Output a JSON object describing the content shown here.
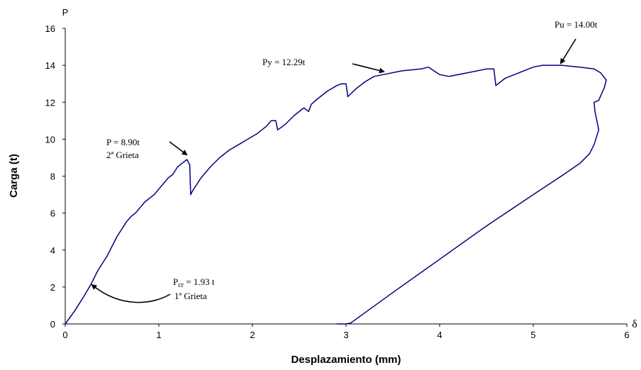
{
  "chart_data": {
    "type": "line",
    "x_label": "Desplazamiento (mm)",
    "y_label": "Carga (t)",
    "y_axis_symbol": "P",
    "x_axis_symbol": "δ",
    "xlim": [
      0,
      6
    ],
    "xticks": [
      0,
      1,
      2,
      3,
      4,
      5,
      6
    ],
    "ylim": [
      0,
      16
    ],
    "yticks": [
      0,
      2,
      4,
      6,
      8,
      10,
      12,
      14,
      16
    ],
    "grid": false,
    "annotations": [
      {
        "text": "Pu = 14.00t"
      },
      {
        "text": "Py = 12.29t"
      },
      {
        "text": "P = 8.90t"
      },
      {
        "text": "2ª Grieta"
      },
      {
        "text": "P",
        "sub": "cr",
        "rest": " = 1.93 t"
      },
      {
        "text": "1ª Grieta"
      }
    ],
    "series": [
      {
        "name": "Carga",
        "color": "#000080",
        "x": [
          0,
          0.1,
          0.2,
          0.27,
          0.35,
          0.45,
          0.5,
          0.55,
          0.6,
          0.65,
          0.7,
          0.75,
          0.8,
          0.85,
          0.9,
          0.95,
          1.0,
          1.05,
          1.1,
          1.15,
          1.2,
          1.25,
          1.3,
          1.33,
          1.34,
          1.36,
          1.45,
          1.55,
          1.65,
          1.75,
          1.85,
          1.95,
          2.05,
          2.15,
          2.2,
          2.25,
          2.27,
          2.35,
          2.45,
          2.55,
          2.6,
          2.63,
          2.7,
          2.8,
          2.9,
          2.95,
          3.0,
          3.02,
          3.1,
          3.2,
          3.3,
          3.4,
          3.6,
          3.8,
          3.88,
          4.0,
          4.1,
          4.3,
          4.5,
          4.58,
          4.6,
          4.7,
          4.9,
          5.0,
          5.1,
          5.3,
          5.5,
          5.65,
          5.72,
          5.78,
          5.76,
          5.7,
          5.65,
          5.66,
          5.7,
          5.65,
          5.6,
          5.5,
          5.3,
          5.0,
          4.5,
          4.0,
          3.5,
          3.05,
          3.0,
          2.9
        ],
        "values": [
          0,
          0.7,
          1.5,
          2.1,
          2.9,
          3.7,
          4.2,
          4.7,
          5.1,
          5.5,
          5.8,
          6.0,
          6.3,
          6.6,
          6.8,
          7.0,
          7.3,
          7.6,
          7.9,
          8.1,
          8.5,
          8.7,
          8.9,
          8.6,
          7.0,
          7.2,
          7.9,
          8.5,
          9.0,
          9.4,
          9.7,
          10.0,
          10.3,
          10.7,
          11.0,
          11.0,
          10.5,
          10.8,
          11.3,
          11.7,
          11.5,
          11.9,
          12.2,
          12.6,
          12.9,
          13.0,
          13.0,
          12.3,
          12.7,
          13.1,
          13.4,
          13.5,
          13.7,
          13.8,
          13.9,
          13.5,
          13.4,
          13.6,
          13.8,
          13.8,
          12.9,
          13.3,
          13.7,
          13.9,
          14.0,
          14.0,
          13.9,
          13.8,
          13.6,
          13.2,
          12.8,
          12.1,
          12.0,
          11.5,
          10.5,
          9.7,
          9.2,
          8.7,
          8.0,
          7.0,
          5.3,
          3.5,
          1.7,
          0.05,
          0,
          0
        ]
      }
    ]
  }
}
